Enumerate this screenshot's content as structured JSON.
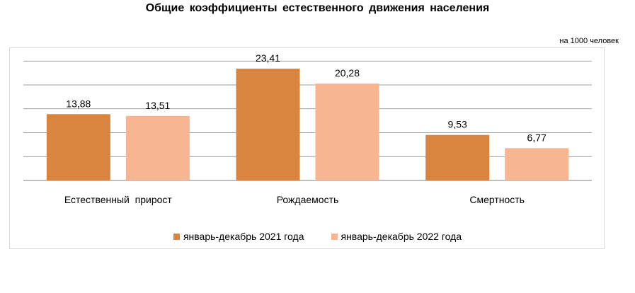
{
  "chart_data": {
    "type": "bar",
    "title": "Общие коэффициенты  естественного  движения  населения",
    "unit_label": "на 1000 человек",
    "categories": [
      "Естественный  прирост",
      "Рождаемость",
      "Смертность"
    ],
    "series": [
      {
        "name": "январь-декабрь  2021 года",
        "values": [
          13.88,
          23.41,
          9.53
        ],
        "labels": [
          "13,88",
          "23,41",
          "9,53"
        ],
        "color": "#d9843f"
      },
      {
        "name": "январь-декабрь  2022 года",
        "values": [
          13.51,
          20.28,
          6.77
        ],
        "labels": [
          "13,51",
          "20,28",
          "6,77"
        ],
        "color": "#f8b592"
      }
    ],
    "ylim": [
      0,
      25
    ],
    "grid": true,
    "legend_position": "bottom",
    "gridline_color": "#7f7f7f"
  }
}
